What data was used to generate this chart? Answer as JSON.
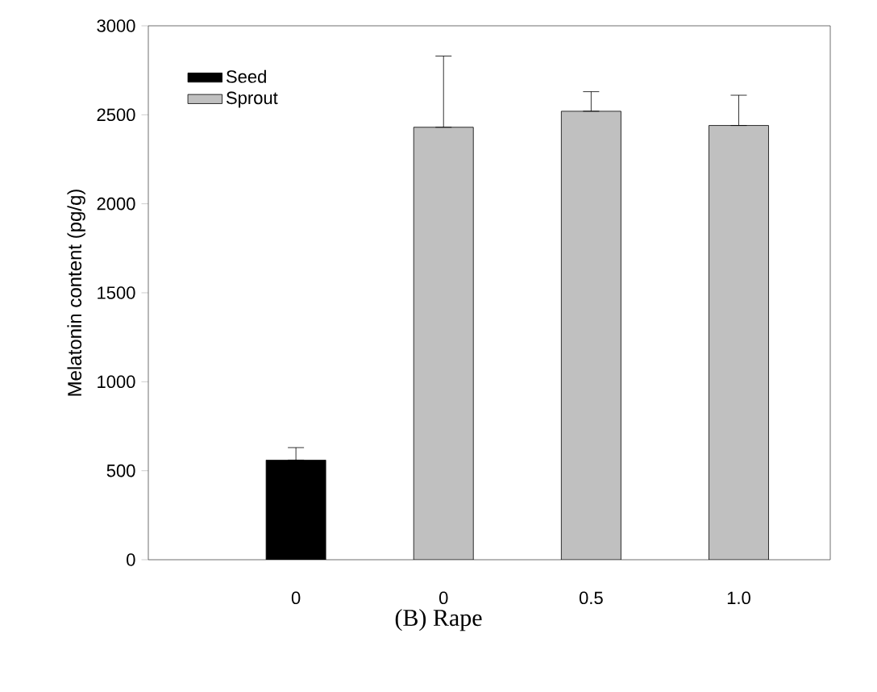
{
  "chart_data": {
    "type": "bar",
    "title": "(B) Rape",
    "ylabel": "Melatonin content (pg/g)",
    "categories": [
      "0",
      "0",
      "0.5",
      "1.0"
    ],
    "series": [
      {
        "name": "Seed",
        "color": "#000000",
        "values": [
          560,
          null,
          null,
          null
        ],
        "errors": [
          [
            560,
            630
          ],
          null,
          null,
          null
        ]
      },
      {
        "name": "Sprout",
        "color": "#c0c0c0",
        "values": [
          null,
          2430,
          2520,
          2440
        ],
        "errors": [
          null,
          [
            2430,
            2830
          ],
          [
            2520,
            2630
          ],
          [
            2440,
            2610
          ]
        ]
      }
    ],
    "ylim": [
      0,
      3000
    ],
    "yticks": [
      0,
      500,
      1000,
      1500,
      2000,
      2500,
      3000
    ],
    "legend": "top left"
  }
}
